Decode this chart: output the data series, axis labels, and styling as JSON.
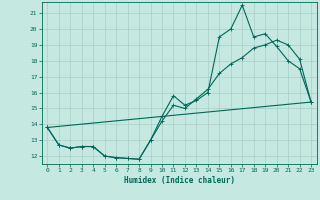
{
  "xlabel": "Humidex (Indice chaleur)",
  "bg_color": "#c5e8e0",
  "grid_color": "#a8cfc8",
  "line_color": "#006858",
  "xlim": [
    -0.5,
    23.5
  ],
  "ylim": [
    11.5,
    21.7
  ],
  "yticks": [
    12,
    13,
    14,
    15,
    16,
    17,
    18,
    19,
    20,
    21
  ],
  "xticks": [
    0,
    1,
    2,
    3,
    4,
    5,
    6,
    7,
    8,
    9,
    10,
    11,
    12,
    13,
    14,
    15,
    16,
    17,
    18,
    19,
    20,
    21,
    22,
    23
  ],
  "line1_x": [
    0,
    1,
    2,
    3,
    4,
    5,
    6,
    7,
    8,
    9,
    10,
    11,
    12,
    13,
    14,
    15,
    16,
    17,
    18,
    19,
    20,
    21,
    22,
    23
  ],
  "line1_y": [
    13.8,
    12.7,
    12.5,
    12.6,
    12.6,
    12.0,
    11.9,
    11.85,
    11.8,
    13.0,
    14.5,
    15.8,
    15.2,
    15.5,
    16.0,
    19.5,
    20.0,
    21.5,
    19.5,
    19.7,
    18.9,
    18.0,
    17.5,
    15.4
  ],
  "line2_x": [
    0,
    1,
    2,
    3,
    4,
    5,
    6,
    7,
    8,
    9,
    10,
    11,
    12,
    13,
    14,
    15,
    16,
    17,
    18,
    19,
    20,
    21,
    22,
    23
  ],
  "line2_y": [
    13.8,
    12.7,
    12.5,
    12.6,
    12.6,
    12.0,
    11.9,
    11.85,
    11.8,
    13.0,
    14.2,
    15.2,
    15.0,
    15.6,
    16.2,
    17.2,
    17.8,
    18.2,
    18.8,
    19.0,
    19.3,
    19.0,
    18.1,
    15.4
  ],
  "line3_x": [
    0,
    23
  ],
  "line3_y": [
    13.8,
    15.4
  ]
}
